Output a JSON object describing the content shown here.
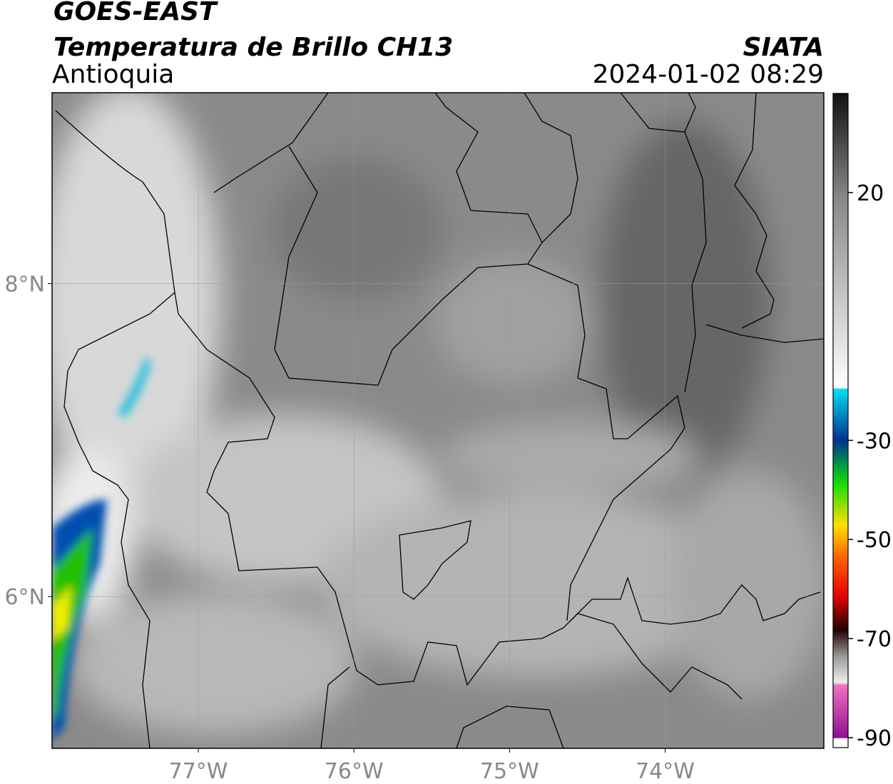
{
  "header": {
    "title": "GOES-EAST",
    "subtitle": "Temperatura de Brillo CH13",
    "region": "Antioquia",
    "source": "SIATA",
    "datetime": "2024-01-02 08:29"
  },
  "map": {
    "xlim": [
      -77.94,
      -72.98
    ],
    "ylim": [
      5.03,
      9.22
    ],
    "xticks": [
      {
        "value": -77,
        "label": "77°W"
      },
      {
        "value": -76,
        "label": "76°W"
      },
      {
        "value": -75,
        "label": "75°W"
      },
      {
        "value": -74,
        "label": "74°W"
      }
    ],
    "yticks": [
      {
        "value": 6,
        "label": "6°N"
      },
      {
        "value": 8,
        "label": "8°N"
      }
    ],
    "grid": true
  },
  "colorbar": {
    "lim": [
      -92,
      40
    ],
    "ticks": [
      -90,
      -70,
      -50,
      -30,
      20
    ]
  }
}
